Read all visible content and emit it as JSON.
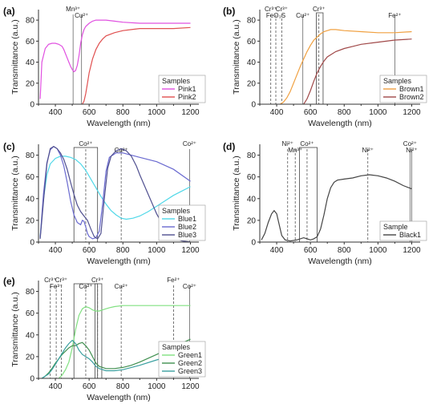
{
  "chart_data": [
    {
      "panel": "(a)",
      "type": "line",
      "xlabel": "Wavelength (nm)",
      "ylabel": "Transmittance (a.u.)",
      "xlim": [
        300,
        1250
      ],
      "ylim": [
        0,
        90
      ],
      "xticks": [
        400,
        600,
        800,
        1000,
        1200
      ],
      "yticks": [
        0,
        20,
        40,
        60,
        80
      ],
      "legend_title": "Samples",
      "legend_position": "bottom-right",
      "markers": [
        {
          "x": 505,
          "label": "Mn³⁺",
          "style": "solid"
        },
        {
          "x": 555,
          "label": "Cu²⁺",
          "style": "solid"
        }
      ],
      "boxes": [],
      "series": [
        {
          "name": "Pink1",
          "color": "#e050e0",
          "x": [
            310,
            320,
            340,
            360,
            380,
            400,
            420,
            440,
            450,
            460,
            470,
            480,
            490,
            500,
            510,
            520,
            530,
            540,
            550,
            560,
            570,
            580,
            600,
            620,
            640,
            660,
            700,
            750,
            800,
            900,
            1000,
            1100,
            1200
          ],
          "y": [
            5,
            40,
            53,
            57,
            58,
            58,
            57,
            55,
            52,
            48,
            44,
            40,
            36,
            33,
            31,
            32,
            37,
            46,
            58,
            66,
            71,
            74,
            77,
            79,
            80,
            80,
            80,
            79,
            78,
            77,
            77,
            77,
            77
          ]
        },
        {
          "name": "Pink2",
          "color": "#e05050",
          "x": [
            560,
            570,
            580,
            590,
            600,
            620,
            640,
            660,
            680,
            700,
            750,
            800,
            850,
            900,
            1000,
            1100,
            1200
          ],
          "y": [
            0,
            3,
            10,
            20,
            30,
            43,
            52,
            58,
            62,
            65,
            68,
            70,
            71,
            72,
            72,
            72,
            73
          ]
        }
      ]
    },
    {
      "panel": "(b)",
      "type": "line",
      "xlabel": "Wavelength (nm)",
      "ylabel": "Transmittance (a.u.)",
      "xlim": [
        300,
        1250
      ],
      "ylim": [
        0,
        90
      ],
      "xticks": [
        400,
        600,
        800,
        1000,
        1200
      ],
      "yticks": [
        0,
        20,
        40,
        60,
        80
      ],
      "legend_title": "Samples",
      "legend_position": "bottom-right",
      "markers": [
        {
          "x": 365,
          "label": "Cr³⁺",
          "style": "dashed"
        },
        {
          "x": 395,
          "label": "FeO₃S",
          "style": "dashed"
        },
        {
          "x": 430,
          "label": "Cr³⁺",
          "style": "dashed"
        },
        {
          "x": 555,
          "label": "Cu²⁺",
          "style": "solid"
        },
        {
          "x": 650,
          "label": "Cr³⁺",
          "style": "dashed"
        },
        {
          "x": 1100,
          "label": "Fe²⁺",
          "style": "solid"
        }
      ],
      "boxes": [
        {
          "x0": 635,
          "x1": 675
        }
      ],
      "series": [
        {
          "name": "Brown1",
          "color": "#f0a040",
          "x": [
            420,
            440,
            460,
            480,
            500,
            520,
            540,
            560,
            580,
            600,
            620,
            640,
            660,
            680,
            700,
            720,
            750,
            800,
            900,
            1000,
            1100,
            1200
          ],
          "y": [
            0,
            2,
            6,
            12,
            20,
            28,
            36,
            43,
            50,
            56,
            61,
            64,
            67,
            69,
            70,
            71,
            71,
            70,
            69,
            68,
            68,
            69
          ]
        },
        {
          "name": "Brown2",
          "color": "#a04848",
          "x": [
            560,
            580,
            600,
            620,
            640,
            660,
            680,
            700,
            750,
            800,
            850,
            900,
            1000,
            1100,
            1200
          ],
          "y": [
            0,
            5,
            13,
            22,
            30,
            36,
            41,
            45,
            50,
            53,
            55,
            57,
            59,
            61,
            62
          ]
        }
      ]
    },
    {
      "panel": "(c)",
      "type": "line",
      "xlabel": "Wavelength (nm)",
      "ylabel": "Transmittance (a.u.)",
      "xlim": [
        300,
        1250
      ],
      "ylim": [
        0,
        90
      ],
      "xticks": [
        400,
        600,
        800,
        1000,
        1200
      ],
      "yticks": [
        0,
        20,
        40,
        60,
        80
      ],
      "legend_title": "Samples",
      "legend_position": "bottom-right",
      "markers": [
        {
          "x": 580,
          "label": "Co²⁺",
          "style": "dashed"
        },
        {
          "x": 790,
          "label": "Cu²⁺",
          "style": "dashed"
        },
        {
          "x": 1195,
          "label": "Co²⁺",
          "style": "solid"
        }
      ],
      "boxes": [
        {
          "x0": 510,
          "x1": 650
        }
      ],
      "series": [
        {
          "name": "Blue1",
          "color": "#50d8e8",
          "x": [
            310,
            330,
            350,
            370,
            400,
            430,
            460,
            490,
            520,
            550,
            580,
            610,
            640,
            670,
            700,
            730,
            760,
            790,
            820,
            860,
            900,
            950,
            1000,
            1050,
            1100,
            1150,
            1200
          ],
          "y": [
            5,
            40,
            62,
            72,
            77,
            79,
            79,
            78,
            76,
            72,
            66,
            58,
            50,
            42,
            35,
            29,
            25,
            22,
            21,
            22,
            24,
            28,
            33,
            38,
            43,
            47,
            51
          ]
        },
        {
          "name": "Blue2",
          "color": "#6a6ad0",
          "x": [
            310,
            330,
            350,
            370,
            390,
            410,
            430,
            450,
            470,
            490,
            510,
            530,
            550,
            560,
            570,
            580,
            590,
            600,
            620,
            640,
            660,
            680,
            700,
            720,
            760,
            800,
            850,
            900,
            1000,
            1100,
            1200
          ],
          "y": [
            4,
            45,
            73,
            85,
            88,
            86,
            80,
            70,
            55,
            38,
            25,
            18,
            16,
            20,
            19,
            14,
            8,
            5,
            3,
            4,
            10,
            35,
            65,
            78,
            82,
            82,
            80,
            78,
            74,
            67,
            56
          ]
        },
        {
          "name": "Blue3",
          "color": "#505090",
          "x": [
            310,
            330,
            350,
            370,
            390,
            410,
            430,
            450,
            470,
            490,
            510,
            530,
            550,
            570,
            590,
            610,
            630,
            650,
            670,
            690,
            710,
            730,
            760,
            790,
            820,
            850,
            880,
            900,
            950,
            1000,
            1050,
            1100,
            1150,
            1200
          ],
          "y": [
            3,
            38,
            72,
            86,
            88,
            86,
            82,
            76,
            67,
            55,
            44,
            34,
            28,
            24,
            20,
            12,
            5,
            3,
            8,
            40,
            68,
            79,
            84,
            86,
            84,
            79,
            70,
            62,
            44,
            26,
            12,
            4,
            1,
            0
          ]
        }
      ]
    },
    {
      "panel": "(d)",
      "type": "line",
      "xlabel": "Wavelength (nm)",
      "ylabel": "Transmittance (a.u.)",
      "xlim": [
        300,
        1250
      ],
      "ylim": [
        0,
        90
      ],
      "xticks": [
        400,
        600,
        800,
        1000,
        1200
      ],
      "yticks": [
        0,
        20,
        40,
        60,
        80
      ],
      "legend_title": "Sample",
      "legend_position": "bottom-right",
      "markers": [
        {
          "x": 465,
          "label": "Ni²⁺",
          "style": "dashed"
        },
        {
          "x": 510,
          "label": "Mn³⁺",
          "style": "dashed"
        },
        {
          "x": 580,
          "label": "Co²⁺",
          "style": "dashed"
        },
        {
          "x": 940,
          "label": "Ni²⁺",
          "style": "dashed"
        },
        {
          "x": 1190,
          "label": "Co²⁺",
          "style": "solid"
        },
        {
          "x": 1200,
          "label": "Ni²⁺",
          "style": "solid"
        }
      ],
      "boxes": [
        {
          "x0": 535,
          "x1": 640
        }
      ],
      "series": [
        {
          "name": "Black1",
          "color": "#444444",
          "x": [
            310,
            330,
            350,
            370,
            385,
            400,
            415,
            430,
            450,
            480,
            520,
            560,
            580,
            600,
            620,
            640,
            660,
            680,
            700,
            720,
            740,
            760,
            800,
            850,
            900,
            950,
            1000,
            1050,
            1100,
            1150,
            1200
          ],
          "y": [
            2,
            8,
            18,
            26,
            29,
            26,
            16,
            6,
            2,
            1,
            2,
            4,
            3,
            2,
            3,
            5,
            12,
            25,
            40,
            50,
            55,
            57,
            58,
            59,
            61,
            62,
            61,
            59,
            56,
            52,
            49
          ]
        }
      ]
    },
    {
      "panel": "(e)",
      "type": "line",
      "xlabel": "Wavelength (nm)",
      "ylabel": "Transmittance (a.u.)",
      "xlim": [
        300,
        1250
      ],
      "ylim": [
        0,
        90
      ],
      "xticks": [
        400,
        600,
        800,
        1000,
        1200
      ],
      "yticks": [
        0,
        20,
        40,
        60,
        80
      ],
      "legend_title": "Samples",
      "legend_position": "bottom-right",
      "markers": [
        {
          "x": 370,
          "label": "Cr³⁺",
          "style": "dashed"
        },
        {
          "x": 405,
          "label": "Fe³⁺",
          "style": "dashed"
        },
        {
          "x": 435,
          "label": "Cr³⁺",
          "style": "dashed"
        },
        {
          "x": 580,
          "label": "Co²⁺",
          "style": "dashed"
        },
        {
          "x": 650,
          "label": "Cr³⁺",
          "style": "dashed"
        },
        {
          "x": 790,
          "label": "Cu²⁺",
          "style": "dashed"
        },
        {
          "x": 1100,
          "label": "Fe²⁺",
          "style": "dashed"
        },
        {
          "x": 1195,
          "label": "Co²⁺",
          "style": "solid"
        }
      ],
      "boxes": [
        {
          "x0": 510,
          "x1": 650
        },
        {
          "x0": 635,
          "x1": 675
        }
      ],
      "series": [
        {
          "name": "Green1",
          "color": "#80e080",
          "x": [
            420,
            440,
            460,
            480,
            500,
            520,
            540,
            560,
            580,
            600,
            620,
            640,
            660,
            680,
            700,
            720,
            750,
            800,
            900,
            1000,
            1100,
            1200
          ],
          "y": [
            0,
            3,
            8,
            15,
            28,
            45,
            58,
            64,
            66,
            65,
            63,
            62,
            62,
            63,
            64,
            65,
            66,
            67,
            67,
            67,
            67,
            67
          ]
        },
        {
          "name": "Green2",
          "color": "#409050",
          "x": [
            320,
            340,
            360,
            380,
            400,
            420,
            440,
            460,
            480,
            500,
            520,
            540,
            560,
            580,
            600,
            620,
            640,
            660,
            700,
            750,
            800,
            850,
            900,
            1000,
            1100,
            1200
          ],
          "y": [
            0,
            2,
            5,
            9,
            14,
            18,
            22,
            25,
            28,
            30,
            30,
            32,
            33,
            30,
            26,
            20,
            14,
            11,
            9,
            9,
            10,
            12,
            15,
            22,
            29,
            36
          ]
        },
        {
          "name": "Green3",
          "color": "#3aa0a0",
          "x": [
            320,
            340,
            360,
            380,
            400,
            420,
            440,
            460,
            480,
            500,
            520,
            540,
            560,
            580,
            600,
            620,
            640,
            660,
            700,
            750,
            800,
            850,
            900,
            1000,
            1100,
            1200
          ],
          "y": [
            0,
            2,
            4,
            8,
            13,
            18,
            23,
            28,
            32,
            35,
            32,
            26,
            22,
            20,
            18,
            15,
            11,
            9,
            7,
            7,
            8,
            10,
            12,
            17,
            21,
            25
          ]
        }
      ]
    }
  ]
}
